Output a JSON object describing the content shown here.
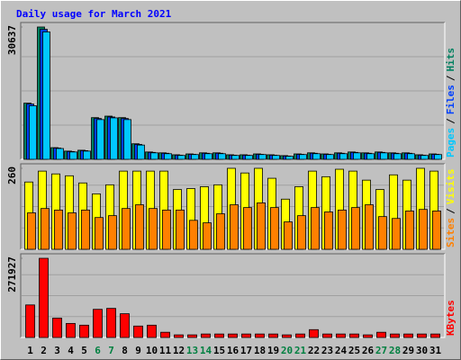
{
  "chart_data": [
    {
      "type": "bar",
      "title": "Daily usage for March 2021",
      "categories": [
        "1",
        "2",
        "3",
        "4",
        "5",
        "6",
        "7",
        "8",
        "9",
        "10",
        "11",
        "12",
        "13",
        "14",
        "15",
        "16",
        "17",
        "18",
        "19",
        "20",
        "21",
        "22",
        "23",
        "24",
        "25",
        "26",
        "27",
        "28",
        "29",
        "30",
        "31"
      ],
      "category_colors": [
        "#000000",
        "#000000",
        "#000000",
        "#000000",
        "#000000",
        "#008040",
        "#008040",
        "#000000",
        "#000000",
        "#000000",
        "#000000",
        "#000000",
        "#008040",
        "#008040",
        "#000000",
        "#000000",
        "#000000",
        "#000000",
        "#000000",
        "#008040",
        "#008040",
        "#000000",
        "#000000",
        "#000000",
        "#000000",
        "#000000",
        "#008040",
        "#008040",
        "#000000",
        "#000000",
        "#000000"
      ],
      "separator": "/",
      "series": [
        {
          "name": "Pages",
          "color": "#00c8ff",
          "values": [
            12400,
            29500,
            2500,
            1700,
            1900,
            9200,
            9600,
            9200,
            3300,
            1500,
            1300,
            900,
            1100,
            1300,
            1300,
            900,
            900,
            1100,
            900,
            700,
            1100,
            1300,
            1100,
            1300,
            1500,
            1300,
            1500,
            1300,
            1300,
            900,
            1100
          ]
        },
        {
          "name": "Files",
          "color": "#0040ff",
          "values": [
            12800,
            30100,
            2600,
            1800,
            2000,
            9450,
            9800,
            9450,
            3450,
            1600,
            1400,
            950,
            1150,
            1400,
            1400,
            950,
            950,
            1150,
            950,
            750,
            1150,
            1400,
            1150,
            1400,
            1600,
            1400,
            1600,
            1400,
            1400,
            950,
            1150
          ]
        },
        {
          "name": "Hits",
          "color": "#008060",
          "values": [
            13000,
            30637,
            2700,
            1900,
            2100,
            9650,
            10000,
            9650,
            3600,
            1700,
            1500,
            1050,
            1250,
            1500,
            1500,
            1050,
            1050,
            1250,
            1050,
            850,
            1250,
            1500,
            1250,
            1500,
            1700,
            1500,
            1700,
            1500,
            1500,
            1050,
            1250
          ]
        }
      ],
      "ylim": [
        0,
        30637
      ],
      "yticks": [
        30637
      ],
      "grid": true
    },
    {
      "type": "bar",
      "separator": "/",
      "series": [
        {
          "name": "Sites",
          "color": "#ff8000",
          "values": [
            117,
            131,
            126,
            117,
            126,
            102,
            108,
            131,
            143,
            131,
            126,
            126,
            93,
            85,
            114,
            143,
            134,
            149,
            134,
            88,
            108,
            134,
            120,
            126,
            134,
            143,
            105,
            99,
            123,
            128,
            123
          ]
        },
        {
          "name": "Visits",
          "color": "#ffff00",
          "values": [
            216,
            251,
            242,
            236,
            213,
            178,
            207,
            251,
            251,
            251,
            251,
            192,
            195,
            201,
            207,
            260,
            245,
            260,
            228,
            161,
            201,
            251,
            233,
            257,
            251,
            222,
            192,
            239,
            222,
            260,
            251
          ]
        }
      ],
      "ylim": [
        0,
        260
      ],
      "yticks": [
        260
      ],
      "grid": true
    },
    {
      "type": "bar",
      "series": [
        {
          "name": "KBytes",
          "color": "#ff0000",
          "values": [
            111800,
            271927,
            66500,
            48300,
            42300,
            96700,
            100000,
            81600,
            39300,
            42300,
            18000,
            9000,
            9000,
            12000,
            12000,
            12000,
            12000,
            12000,
            12000,
            9000,
            12000,
            27000,
            12000,
            12000,
            12000,
            9000,
            18000,
            12000,
            12000,
            12000,
            12000
          ]
        }
      ],
      "ylim": [
        0,
        271927
      ],
      "yticks": [
        271927
      ],
      "grid": true
    }
  ]
}
